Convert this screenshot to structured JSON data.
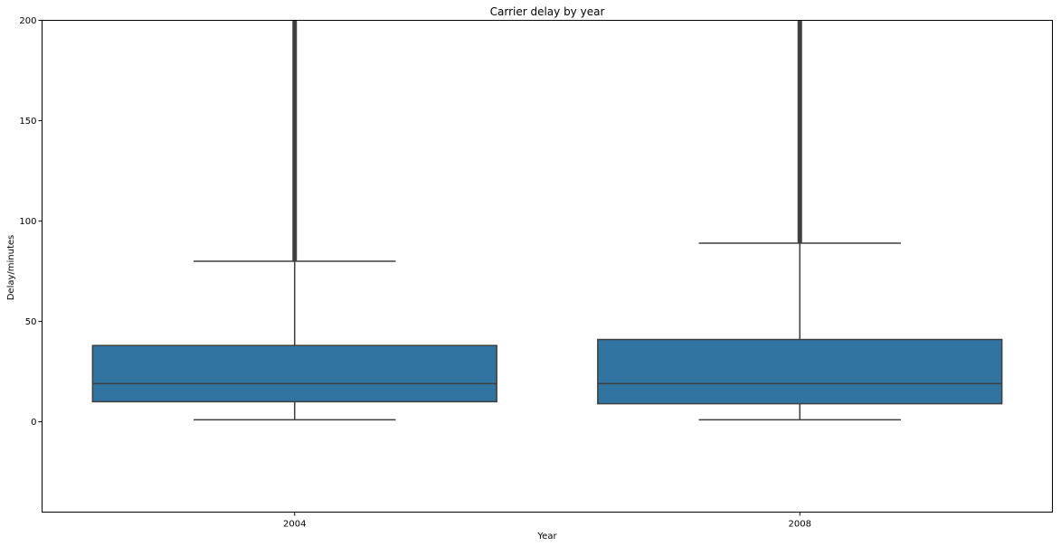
{
  "chart_data": {
    "type": "box",
    "title": "Carrier delay by year",
    "xlabel": "Year",
    "ylabel": "Delay/minutes",
    "categories": [
      "2004",
      "2008"
    ],
    "ylim": [
      -45,
      200
    ],
    "yticks": [
      0,
      50,
      100,
      150,
      200
    ],
    "ytick_labels": [
      "0",
      "50",
      "100",
      "150",
      "200"
    ],
    "grid": false,
    "box_color": "#3274a1",
    "line_color": "#3f3f3f",
    "boxes": [
      {
        "category": "2004",
        "whisker_low": 1,
        "q1": 10,
        "median": 19,
        "q3": 38,
        "whisker_high": 80,
        "outliers_from": 80,
        "outliers_to": 200
      },
      {
        "category": "2008",
        "whisker_low": 1,
        "q1": 9,
        "median": 19,
        "q3": 41,
        "whisker_high": 89,
        "outliers_from": 89,
        "outliers_to": 200
      }
    ]
  }
}
